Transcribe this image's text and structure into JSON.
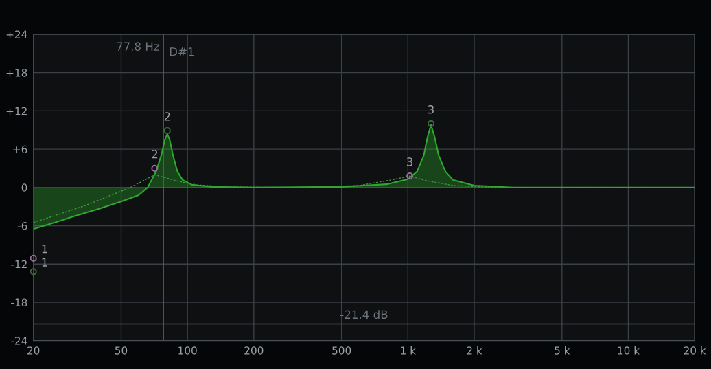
{
  "chart_data": {
    "type": "area",
    "x": [
      20,
      25,
      30,
      40,
      50,
      60,
      66,
      72,
      76,
      79,
      81,
      83,
      86,
      90,
      95,
      105,
      130,
      200,
      500,
      800,
      1000,
      1100,
      1180,
      1230,
      1273,
      1320,
      1380,
      1480,
      1600,
      2000,
      3000,
      20000
    ],
    "series": [
      {
        "color": "#2ea82e",
        "values": [
          -6.5,
          -5.5,
          -4.6,
          -3.3,
          -2.2,
          -1.2,
          0,
          2.5,
          5,
          7.5,
          8.4,
          7.5,
          5,
          2.5,
          1.2,
          0.4,
          0.1,
          0,
          0.1,
          0.5,
          1.3,
          2.5,
          5,
          8,
          9.8,
          8,
          5,
          2.5,
          1.2,
          0.3,
          0,
          0
        ]
      },
      {
        "type": "line",
        "line_style": "dashed",
        "color": "#3c9c3c",
        "x": [
          20,
          34,
          55,
          71,
          90,
          110,
          150,
          300,
          600,
          850,
          1020,
          1200,
          1600,
          2500,
          20000
        ],
        "values": [
          -5.5,
          -2.9,
          0,
          2.0,
          1.0,
          0.4,
          0.1,
          0,
          0.3,
          1.2,
          1.8,
          1.1,
          0.3,
          0,
          0
        ]
      },
      {
        "type": "scatter",
        "marker": "circle",
        "color": "#3f6b3f",
        "x": [
          20,
          81,
          1273
        ],
        "values": [
          -13.2,
          8.9,
          10
        ]
      },
      {
        "type": "scatter",
        "marker": "circle",
        "color": "#9a6a9a",
        "x": [
          20,
          71,
          1020
        ],
        "values": [
          -11.1,
          3.0,
          1.8
        ]
      }
    ],
    "log": "x",
    "xlim": [
      20,
      20000
    ],
    "ylim": [
      -24,
      24
    ],
    "xticks": [
      20,
      50,
      100,
      200,
      500,
      {
        "value": 1000,
        "label": "1 k"
      },
      {
        "value": 2000,
        "label": "2 k"
      },
      {
        "value": 5000,
        "label": "5 k"
      },
      {
        "value": 10000,
        "label": "10 k"
      },
      {
        "value": 20000,
        "label": "20 k"
      }
    ],
    "yticks": [
      {
        "value": -24,
        "label": "-24"
      },
      {
        "value": -18,
        "label": "-18"
      },
      {
        "value": -12,
        "label": "-12"
      },
      {
        "value": -6,
        "label": "-6"
      },
      0,
      {
        "value": 6,
        "label": "+6"
      },
      {
        "value": 12,
        "label": "+12"
      },
      {
        "value": 18,
        "label": "+18"
      },
      {
        "value": 24,
        "label": "+24"
      }
    ],
    "grid": true,
    "ref_lines": [
      {
        "axis": "x",
        "value": 77.8,
        "label": "77.8 Hz",
        "color": "#5a5f66"
      },
      {
        "axis": "y",
        "value": -21.4,
        "label": "-21.4 dB",
        "color": "#5a5f66"
      }
    ],
    "annotations": [
      "D#1",
      {
        "text": "1",
        "x": 20,
        "y": -13.2
      },
      {
        "text": "1",
        "x": 20,
        "y": -11.1
      },
      {
        "text": "2",
        "x": 81,
        "y": 8.9
      },
      {
        "text": "2",
        "x": 71,
        "y": 3.0
      },
      {
        "text": "3",
        "x": 1273,
        "y": 10
      },
      {
        "text": "3",
        "x": 1020,
        "y": 1.8
      }
    ]
  }
}
